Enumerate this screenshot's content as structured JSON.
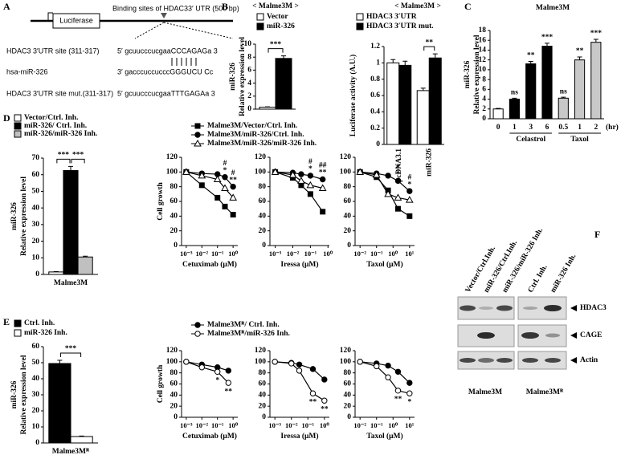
{
  "panel_labels": [
    "A",
    "B",
    "C",
    "D",
    "E",
    "F"
  ],
  "diagram": {
    "luciferase": "Luciferase",
    "binding_site": "Binding sites of HDAC33′ UTR (500 bp)",
    "rows": [
      {
        "label": "HDAC3 3′UTR  site (311-317)",
        "sequence": "5′ gcuucccucgaaCCCAGAGa  3"
      },
      {
        "label": "hsa-miR-326",
        "sequence": "3′ gacccuccucccGGGUCU Cc"
      },
      {
        "label": "HDAC3 3′UTR site mut.(311-317)",
        "sequence": "5′ gcuucccucgaaTTTGAGAa  3"
      }
    ]
  },
  "blot": {
    "lanes": [
      "Vector/Ctrl.Inh.",
      "miR-326/Ctrl.Inh.",
      "miR-326/miR-326 Inh.",
      "Ctrl. Inh.",
      "miR-326 Inh."
    ],
    "bands": [
      "HDAC3",
      "CAGE",
      "Actin"
    ],
    "cell_lines": [
      "Malme3M",
      "Malme3Mᴿ"
    ]
  },
  "chart_data": [
    {
      "type": "bar",
      "title": "< Malme3M >",
      "ylabel": [
        "miR-326",
        "Relative expression level"
      ],
      "categories": [
        null
      ],
      "series": [
        {
          "name": "Vector",
          "color": "#ffffff",
          "values": [
            0.3
          ],
          "errors": [
            0.05
          ]
        },
        {
          "name": "miR-326",
          "color": "#000000",
          "values": [
            7.8
          ],
          "errors": [
            0.4
          ]
        }
      ],
      "ylim": [
        0,
        10
      ],
      "yticks": [
        0,
        2,
        4,
        6,
        8,
        10
      ],
      "brackets": [
        "***"
      ]
    },
    {
      "type": "bar",
      "title": "< Malme3M >",
      "ylabel": [
        "Luciferase activity (A.U.)"
      ],
      "categories": [
        "pcDNA3.1",
        "miR-326"
      ],
      "rotate_labels": true,
      "series": [
        {
          "name": "HDAC3  3′UTR",
          "color": "#ffffff",
          "values": [
            1.0,
            0.66
          ],
          "errors": [
            0.04,
            0.03
          ]
        },
        {
          "name": "HDAC3  3′UTR mut.",
          "color": "#000000",
          "values": [
            0.97,
            1.06
          ],
          "errors": [
            0.05,
            0.05
          ]
        }
      ],
      "ylim": [
        0,
        1.2
      ],
      "yticks": [
        0,
        0.2,
        0.4,
        0.6,
        0.8,
        1,
        1.2
      ],
      "brackets": [
        "**"
      ]
    },
    {
      "type": "bar",
      "title": "Malme3M",
      "ylabel": [
        "miR-326",
        "Relative expression level"
      ],
      "categories": [
        "0",
        "1",
        "3",
        "6",
        "0.5",
        "1",
        "2"
      ],
      "x_unit": "(hr)",
      "groups": [
        "Celastrol",
        "Taxol"
      ],
      "values": [
        2.0,
        4.0,
        11.2,
        14.8,
        4.2,
        12.0,
        15.6
      ],
      "errors": [
        0.1,
        0.2,
        0.5,
        0.6,
        0.2,
        0.6,
        0.6
      ],
      "colors": [
        "#ffffff",
        "#000000",
        "#000000",
        "#000000",
        "#c8c8c8",
        "#c8c8c8",
        "#c8c8c8"
      ],
      "annotations": [
        null,
        "ns",
        "**",
        "***",
        "ns",
        "**",
        "***"
      ],
      "ylim": [
        0,
        18
      ],
      "yticks": [
        0,
        2,
        4,
        6,
        8,
        10,
        12,
        14,
        16,
        18
      ]
    },
    {
      "type": "bar",
      "ylabel": [
        "miR-326",
        "Relative expression level"
      ],
      "categories": [
        "Malme3M"
      ],
      "series": [
        {
          "name": "Vector/Ctrl. Inh.",
          "color": "#ffffff",
          "values": [
            1.5
          ],
          "errors": [
            0.2
          ]
        },
        {
          "name": "miR-326/ Ctrl. Inh.",
          "color": "#000000",
          "values": [
            62.5
          ],
          "errors": [
            2.5
          ]
        },
        {
          "name": "miR-326/miR-326 Inh.",
          "color": "#c0c0c0",
          "values": [
            10.5
          ],
          "errors": [
            0.5
          ]
        }
      ],
      "ylim": [
        0,
        70
      ],
      "yticks": [
        0,
        10,
        20,
        30,
        40,
        50,
        60,
        70
      ],
      "brackets": [
        "***",
        "***"
      ]
    },
    {
      "type": "line",
      "ylabel": "Cell growth",
      "xlabel": "Cetuximab (μM)",
      "xscale": "log",
      "x": [
        0.001,
        0.01,
        0.1,
        0.3,
        1
      ],
      "series": [
        {
          "name": "Malme3M/Vector/Ctrl.  Inh.",
          "color": "#000000",
          "marker": "square",
          "filled": true,
          "values": [
            100,
            82,
            65,
            53,
            42
          ]
        },
        {
          "name": "Malme3M/miR-326/Ctrl.  Inh.",
          "color": "#000000",
          "marker": "circle",
          "filled": true,
          "values": [
            100,
            98,
            97,
            93,
            80
          ]
        },
        {
          "name": "Malme3M/miR-326/miR-326  Inh.",
          "color": "#000000",
          "marker": "triangle",
          "filled": false,
          "values": [
            100,
            95,
            90,
            78,
            65
          ]
        }
      ],
      "annotations": [
        null,
        null,
        null,
        [
          "#",
          "*"
        ],
        [
          "#",
          "**"
        ]
      ],
      "xlim": [
        0.0005,
        2
      ],
      "xticks": [
        {
          "value": 0.001,
          "label": "10⁻³"
        },
        {
          "value": 0.01,
          "label": "10⁻²"
        },
        {
          "value": 0.1,
          "label": "10⁻¹"
        },
        {
          "value": 1,
          "label": "10⁰"
        }
      ],
      "ylim": [
        0,
        120
      ],
      "yticks": [
        0,
        20,
        40,
        60,
        80,
        100,
        120
      ]
    },
    {
      "type": "line",
      "xlabel": "Iressa (μM)",
      "xscale": "log",
      "x": [
        0.001,
        0.01,
        0.03,
        0.1,
        0.5
      ],
      "series": [
        {
          "color": "#000000",
          "marker": "square",
          "filled": true,
          "values": [
            100,
            92,
            82,
            70,
            46
          ]
        },
        {
          "color": "#000000",
          "marker": "circle",
          "filled": true,
          "values": [
            100,
            99,
            97,
            95,
            90
          ]
        },
        {
          "color": "#000000",
          "marker": "triangle",
          "filled": false,
          "values": [
            100,
            96,
            88,
            82,
            78
          ]
        }
      ],
      "annotations": [
        null,
        null,
        null,
        [
          "#",
          "*"
        ],
        [
          "##",
          "**"
        ]
      ],
      "xlim": [
        0.0005,
        1.2
      ],
      "xticks": [
        {
          "value": 0.001,
          "label": "10⁻³"
        },
        {
          "value": 0.01,
          "label": "10⁻²"
        },
        {
          "value": 0.1,
          "label": "10⁻¹"
        },
        {
          "value": 1,
          "label": "10⁰"
        }
      ],
      "ylim": [
        0,
        120
      ],
      "yticks": [
        0,
        20,
        40,
        60,
        80,
        100,
        120
      ]
    },
    {
      "type": "line",
      "xlabel": "Taxol (μM)",
      "xscale": "log",
      "x": [
        0.01,
        0.1,
        0.5,
        2,
        10
      ],
      "series": [
        {
          "color": "#000000",
          "marker": "square",
          "filled": true,
          "values": [
            100,
            93,
            75,
            50,
            40
          ]
        },
        {
          "color": "#000000",
          "marker": "circle",
          "filled": true,
          "values": [
            100,
            98,
            95,
            88,
            74
          ]
        },
        {
          "color": "#000000",
          "marker": "triangle",
          "filled": false,
          "values": [
            100,
            96,
            70,
            65,
            62
          ]
        }
      ],
      "annotations": [
        null,
        null,
        null,
        [
          "#",
          "*"
        ],
        [
          "#",
          "*"
        ]
      ],
      "xlim": [
        0.005,
        20
      ],
      "xticks": [
        {
          "value": 0.01,
          "label": "10⁻²"
        },
        {
          "value": 0.1,
          "label": "10⁻¹"
        },
        {
          "value": 1,
          "label": "10⁰"
        },
        {
          "value": 10,
          "label": "10¹"
        }
      ],
      "ylim": [
        0,
        120
      ],
      "yticks": [
        0,
        20,
        40,
        60,
        80,
        100,
        120
      ]
    },
    {
      "type": "bar",
      "ylabel": [
        "miR-326",
        "Relative expression level"
      ],
      "categories": [
        "Malme3Mᴿ"
      ],
      "series": [
        {
          "name": "Ctrl. Inh.",
          "color": "#000000",
          "values": [
            49.5
          ],
          "errors": [
            2
          ]
        },
        {
          "name": "miR-326 Inh.",
          "color": "#ffffff",
          "values": [
            4
          ],
          "errors": [
            0.3
          ]
        }
      ],
      "ylim": [
        0,
        60
      ],
      "yticks": [
        0,
        10,
        20,
        30,
        40,
        50,
        60
      ],
      "brackets": [
        "***"
      ]
    },
    {
      "type": "line",
      "ylabel": "Cell growth",
      "xlabel": "Cetuximab (μM)",
      "xscale": "log",
      "x": [
        0.001,
        0.01,
        0.1,
        0.5
      ],
      "series": [
        {
          "name": "Malme3Mᴿ/ Ctrl. Inh.",
          "color": "#000000",
          "marker": "circle",
          "filled": true,
          "values": [
            100,
            95,
            90,
            84
          ]
        },
        {
          "name": "Malme3Mᴿ/miR-326 Inh.",
          "color": "#000000",
          "marker": "circle",
          "filled": false,
          "values": [
            100,
            90,
            82,
            62
          ]
        }
      ],
      "annotations": [
        null,
        null,
        [
          "*"
        ],
        [
          "**"
        ]
      ],
      "xlim": [
        0.0005,
        2
      ],
      "xticks": [
        {
          "value": 0.001,
          "label": "10⁻³"
        },
        {
          "value": 0.01,
          "label": "10⁻²"
        },
        {
          "value": 0.1,
          "label": "10⁻¹"
        },
        {
          "value": 1,
          "label": "10⁰"
        }
      ],
      "ylim": [
        0,
        120
      ],
      "yticks": [
        0,
        20,
        40,
        60,
        80,
        100,
        120
      ]
    },
    {
      "type": "line",
      "xlabel": "Iressa (μM)",
      "xscale": "log",
      "x": [
        0.001,
        0.01,
        0.03,
        0.2,
        1
      ],
      "series": [
        {
          "color": "#000000",
          "marker": "circle",
          "filled": true,
          "values": [
            100,
            98,
            95,
            87,
            68
          ]
        },
        {
          "color": "#000000",
          "marker": "circle",
          "filled": false,
          "values": [
            100,
            97,
            84,
            43,
            30
          ]
        }
      ],
      "annotations": [
        null,
        null,
        null,
        [
          "**"
        ],
        [
          "**"
        ]
      ],
      "xlim": [
        0.0005,
        2
      ],
      "xticks": [
        {
          "value": 0.001,
          "label": "10⁻³"
        },
        {
          "value": 0.01,
          "label": "10⁻²"
        },
        {
          "value": 0.1,
          "label": "10⁻¹"
        },
        {
          "value": 1,
          "label": "10⁰"
        }
      ],
      "ylim": [
        0,
        120
      ],
      "yticks": [
        0,
        20,
        40,
        60,
        80,
        100,
        120
      ]
    },
    {
      "type": "line",
      "xlabel": "Taxol (μM)",
      "xscale": "log",
      "x": [
        0.01,
        0.1,
        0.5,
        2,
        10
      ],
      "series": [
        {
          "color": "#000000",
          "marker": "circle",
          "filled": true,
          "values": [
            100,
            97,
            93,
            82,
            62
          ]
        },
        {
          "color": "#000000",
          "marker": "circle",
          "filled": false,
          "values": [
            100,
            92,
            72,
            48,
            43
          ]
        }
      ],
      "annotations": [
        null,
        null,
        null,
        [
          "**"
        ],
        [
          "*"
        ]
      ],
      "xlim": [
        0.005,
        20
      ],
      "xticks": [
        {
          "value": 0.01,
          "label": "10⁻²"
        },
        {
          "value": 0.1,
          "label": "10⁻¹"
        },
        {
          "value": 1,
          "label": "10⁰"
        },
        {
          "value": 10,
          "label": "10¹"
        }
      ],
      "ylim": [
        0,
        120
      ],
      "yticks": [
        0,
        20,
        40,
        60,
        80,
        100,
        120
      ]
    }
  ]
}
